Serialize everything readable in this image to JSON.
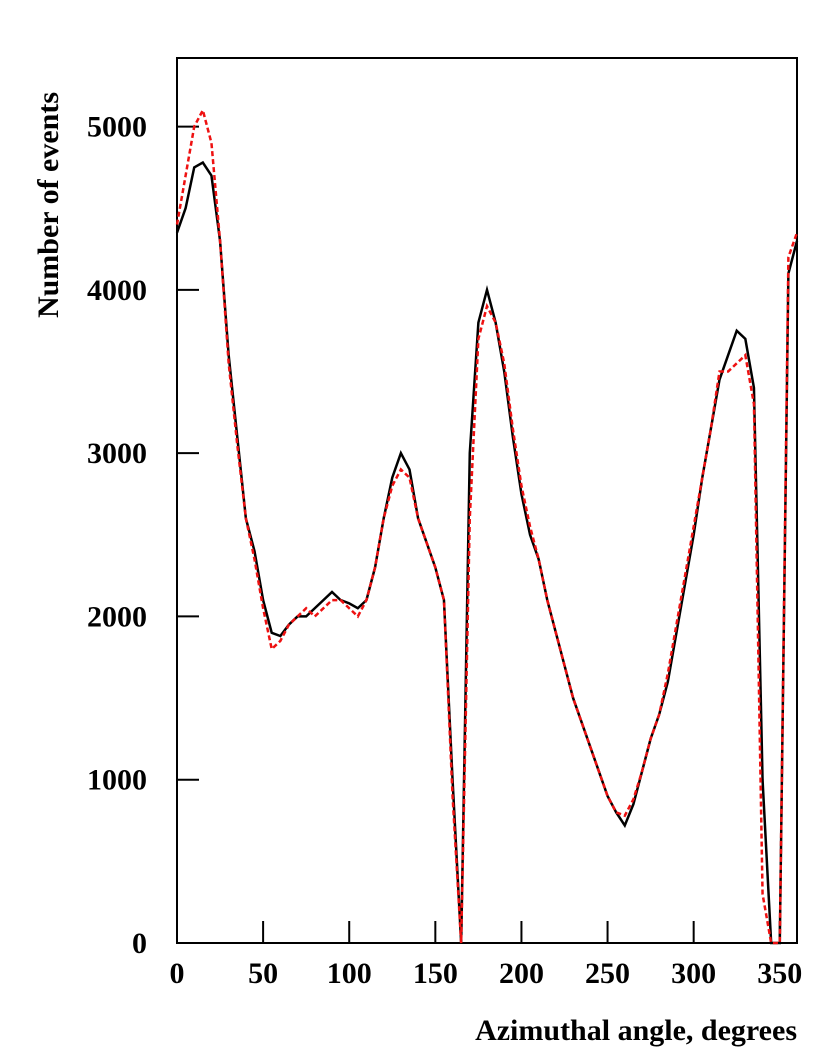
{
  "chart_data": {
    "type": "line",
    "x_label": "Azimuthal angle, degrees",
    "y_label": "Number of events",
    "x": [
      0,
      5,
      10,
      15,
      20,
      25,
      30,
      35,
      40,
      45,
      50,
      55,
      60,
      65,
      70,
      75,
      80,
      85,
      90,
      95,
      100,
      105,
      110,
      115,
      120,
      125,
      130,
      135,
      140,
      145,
      150,
      155,
      160,
      165,
      170,
      175,
      180,
      185,
      190,
      195,
      200,
      205,
      210,
      215,
      220,
      225,
      230,
      235,
      240,
      245,
      250,
      255,
      260,
      265,
      270,
      275,
      280,
      285,
      290,
      295,
      300,
      305,
      310,
      315,
      320,
      325,
      330,
      335,
      340,
      345,
      350,
      355,
      360
    ],
    "series": [
      {
        "color": "#000000",
        "dashed": false,
        "values": [
          4350,
          4500,
          4750,
          4780,
          4700,
          4300,
          3600,
          3100,
          2600,
          2400,
          2100,
          1900,
          1880,
          1950,
          2000,
          2000,
          2050,
          2100,
          2150,
          2100,
          2080,
          2050,
          2100,
          2300,
          2600,
          2850,
          3000,
          2900,
          2600,
          2450,
          2300,
          2100,
          1000,
          0,
          3000,
          3800,
          4000,
          3800,
          3500,
          3100,
          2750,
          2500,
          2350,
          2100,
          1900,
          1700,
          1500,
          1350,
          1200,
          1050,
          900,
          800,
          720,
          850,
          1050,
          1250,
          1400,
          1600,
          1900,
          2200,
          2500,
          2850,
          3150,
          3450,
          3600,
          3750,
          3700,
          3400,
          1000,
          0,
          0,
          4100,
          4300
        ]
      },
      {
        "color": "#ee1111",
        "dashed": true,
        "values": [
          4400,
          4700,
          5000,
          5100,
          4900,
          4300,
          3550,
          3050,
          2600,
          2350,
          2050,
          1800,
          1850,
          1950,
          2000,
          2050,
          2000,
          2050,
          2100,
          2100,
          2050,
          2000,
          2100,
          2300,
          2600,
          2800,
          2900,
          2850,
          2600,
          2450,
          2300,
          2100,
          900,
          0,
          2600,
          3700,
          3900,
          3800,
          3550,
          3150,
          2800,
          2550,
          2350,
          2100,
          1900,
          1700,
          1500,
          1350,
          1200,
          1050,
          900,
          800,
          780,
          880,
          1050,
          1250,
          1400,
          1650,
          1950,
          2250,
          2550,
          2850,
          3150,
          3500,
          3500,
          3550,
          3600,
          3300,
          300,
          0,
          0,
          4200,
          4350
        ]
      }
    ],
    "xlim": [
      0,
      360
    ],
    "ylim": [
      0,
      5420
    ],
    "xticks": [
      0,
      50,
      100,
      150,
      200,
      250,
      300,
      350
    ],
    "yticks": [
      0,
      1000,
      2000,
      3000,
      4000,
      5000
    ]
  }
}
